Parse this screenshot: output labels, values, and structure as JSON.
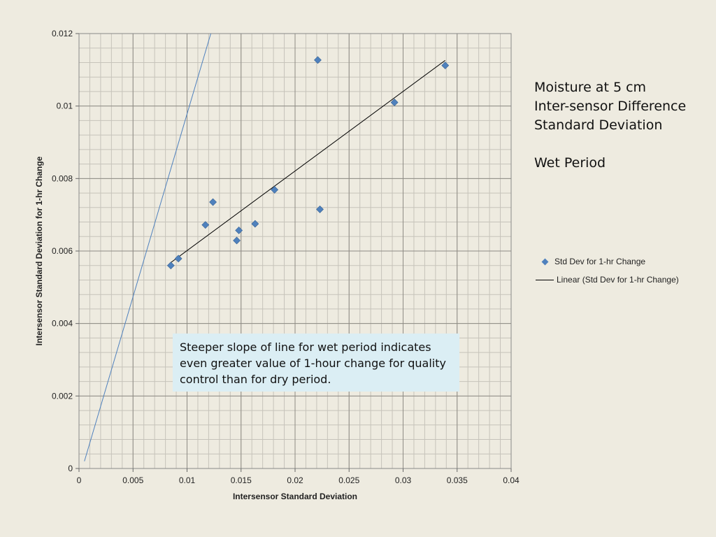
{
  "side_title": {
    "lines": [
      "Moisture at 5 cm",
      "Inter-sensor Difference",
      "Standard Deviation",
      "",
      "Wet Period"
    ]
  },
  "legend": {
    "items": [
      {
        "label": "Std Dev for 1-hr Change",
        "kind": "marker"
      },
      {
        "label": "Linear (Std Dev for 1-hr Change)",
        "kind": "line"
      }
    ]
  },
  "callout": {
    "text": "Steeper slope of line for wet period indicates even greater value of 1-hour change for quality control than for dry period."
  },
  "chart_data": {
    "type": "scatter",
    "title": "",
    "xlabel": "Intersensor Standard Deviation",
    "ylabel": "Intersensor Standard Deviation for 1-hr Change",
    "xlim": [
      0,
      0.04
    ],
    "ylim": [
      0,
      0.012
    ],
    "x_ticks": [
      "0",
      "0.005",
      "0.01",
      "0.015",
      "0.02",
      "0.025",
      "0.03",
      "0.035",
      "0.04"
    ],
    "y_ticks": [
      "0",
      "0.002",
      "0.004",
      "0.006",
      "0.008",
      "0.01",
      "0.012"
    ],
    "grid": true,
    "legend_position": "right",
    "series": [
      {
        "name": "Std Dev for 1-hr Change",
        "marker": "diamond",
        "color": "#4f81bd",
        "points": [
          [
            0.0085,
            0.0056
          ],
          [
            0.0092,
            0.00579
          ],
          [
            0.0117,
            0.00672
          ],
          [
            0.0124,
            0.00735
          ],
          [
            0.0146,
            0.00629
          ],
          [
            0.0148,
            0.00657
          ],
          [
            0.0163,
            0.00675
          ],
          [
            0.0181,
            0.00769
          ],
          [
            0.0221,
            0.01127
          ],
          [
            0.0223,
            0.00715
          ],
          [
            0.0292,
            0.0101
          ],
          [
            0.0339,
            0.01112
          ]
        ]
      }
    ],
    "trendline": {
      "name": "Linear (Std Dev for 1-hr Change)",
      "color": "#000000",
      "from": [
        0.0084,
        0.00566
      ],
      "to": [
        0.0339,
        0.01126
      ]
    },
    "reference_line": {
      "color": "#4f81bd",
      "from": [
        0.0005,
        0.0002
      ],
      "to": [
        0.0122,
        0.012
      ]
    }
  }
}
